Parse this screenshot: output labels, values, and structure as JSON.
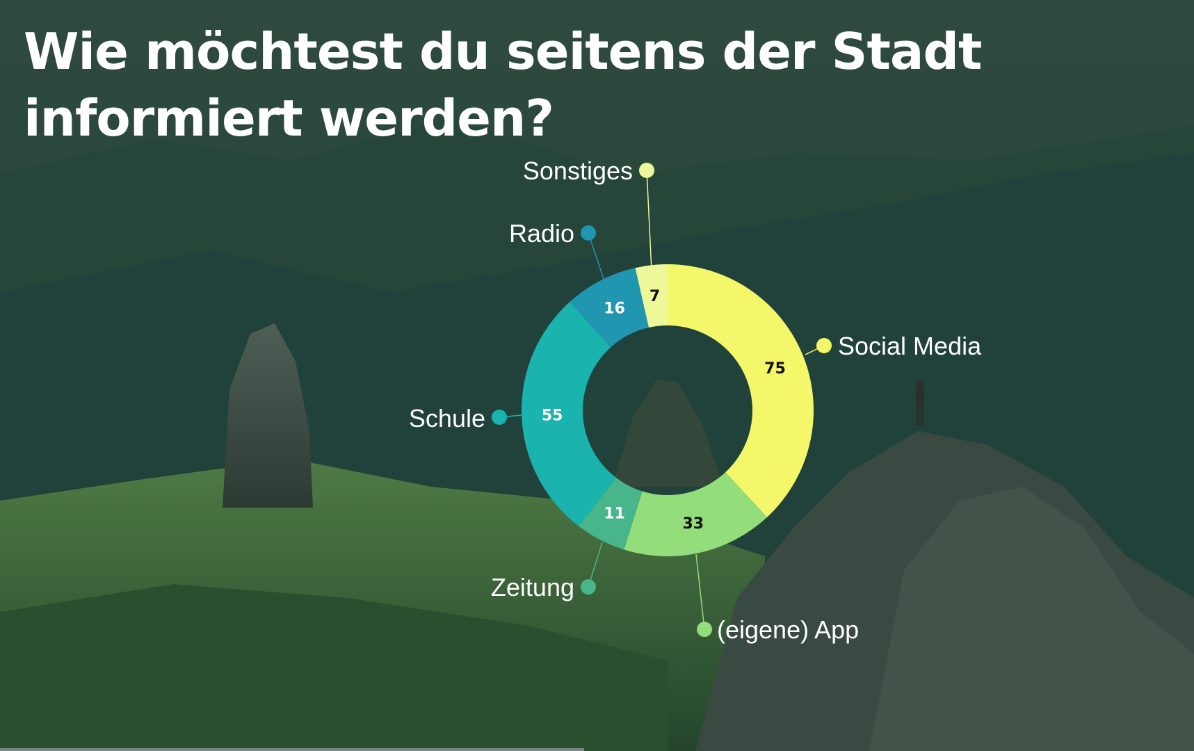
{
  "title": {
    "line1": "Wie möchtest du seitens der Stadt",
    "line2": "informiert werden?"
  },
  "colors": {
    "social_media": "#f4f76a",
    "eigene_app": "#93dd7a",
    "zeitung": "#48b58a",
    "schule": "#1ab3ad",
    "radio": "#2196b0",
    "sonstiges": "#eef89a",
    "title_text": "#ffffff",
    "background": "#1d3a30"
  },
  "chart_data": {
    "type": "pie",
    "donut": true,
    "title": "Wie möchtest du seitens der Stadt informiert werden?",
    "categories": [
      "Social Media",
      "(eigene) App",
      "Zeitung",
      "Schule",
      "Radio",
      "Sonstiges"
    ],
    "values": [
      75,
      33,
      11,
      55,
      16,
      7
    ],
    "colors": [
      "#f4f76a",
      "#93dd7a",
      "#48b58a",
      "#1ab3ad",
      "#2196b0",
      "#eef89a"
    ],
    "value_label_colors": [
      "#111111",
      "#111111",
      "#ffffff",
      "#ffffff",
      "#ffffff",
      "#111111"
    ],
    "legend": "callout labels around the ring"
  }
}
